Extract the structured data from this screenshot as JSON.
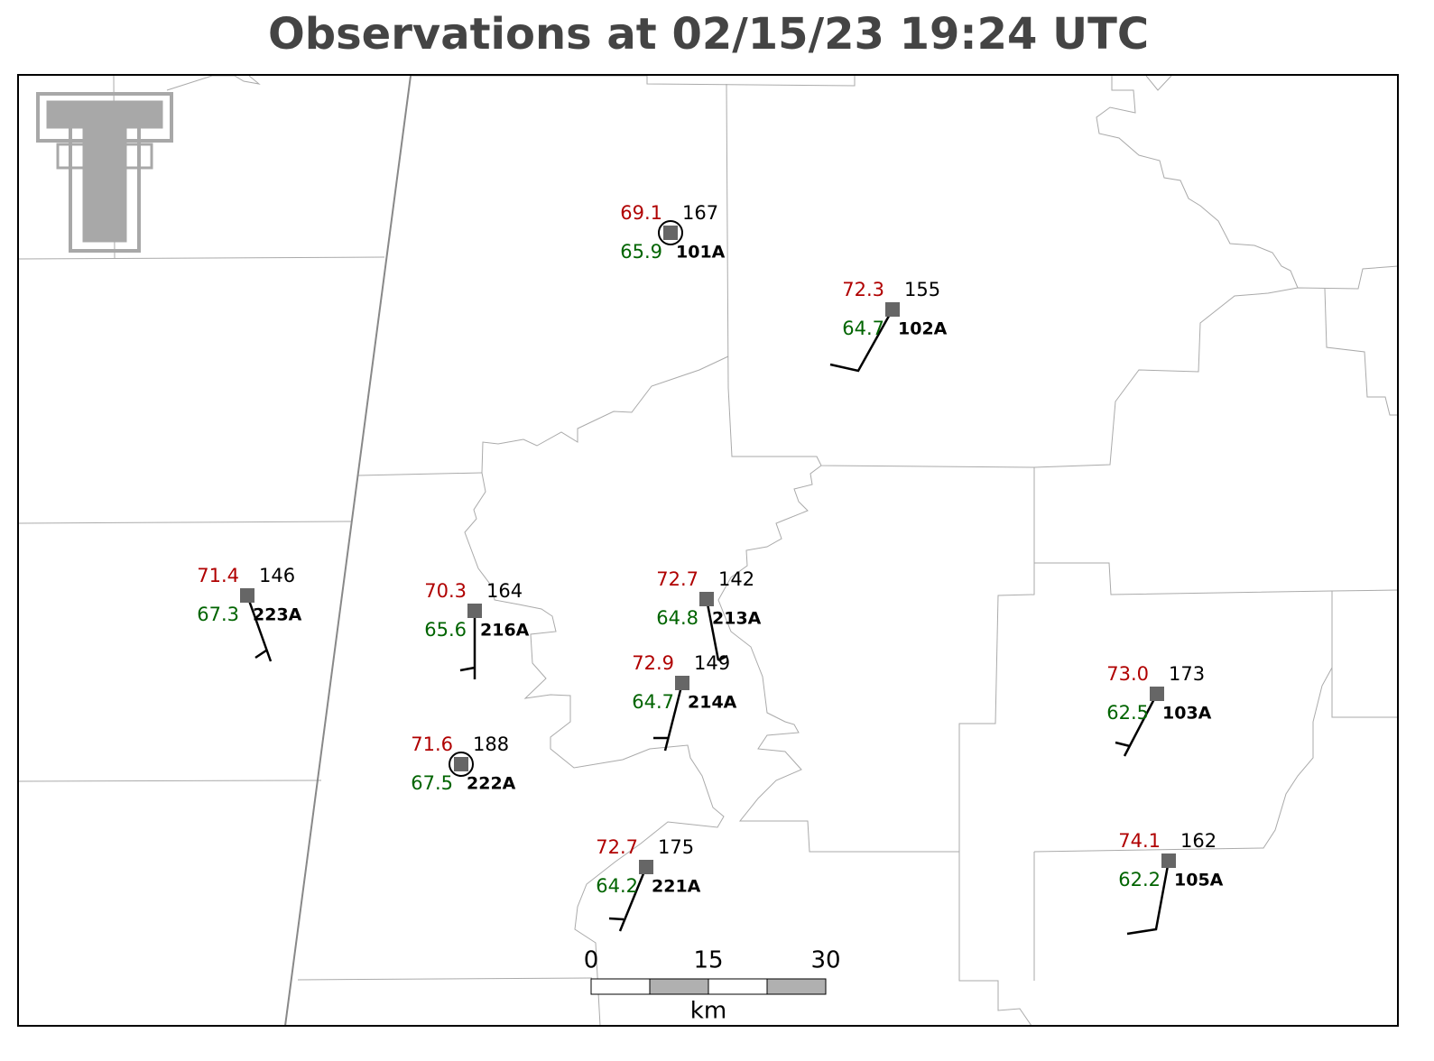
{
  "title": "Observations at 02/15/23 19:24 UTC",
  "stations": [
    {
      "id": "101A",
      "temperature": "69.1",
      "dewpoint": "65.9",
      "pressure": "167"
    },
    {
      "id": "102A",
      "temperature": "72.3",
      "dewpoint": "64.7",
      "pressure": "155"
    },
    {
      "id": "223A",
      "temperature": "71.4",
      "dewpoint": "67.3",
      "pressure": "146"
    },
    {
      "id": "216A",
      "temperature": "70.3",
      "dewpoint": "65.6",
      "pressure": "164"
    },
    {
      "id": "213A",
      "temperature": "72.7",
      "dewpoint": "64.8",
      "pressure": "142"
    },
    {
      "id": "214A",
      "temperature": "72.9",
      "dewpoint": "64.7",
      "pressure": "149"
    },
    {
      "id": "222A",
      "temperature": "71.6",
      "dewpoint": "67.5",
      "pressure": "188"
    },
    {
      "id": "221A",
      "temperature": "72.7",
      "dewpoint": "64.2",
      "pressure": "175"
    },
    {
      "id": "103A",
      "temperature": "73.0",
      "dewpoint": "62.5",
      "pressure": "173"
    },
    {
      "id": "105A",
      "temperature": "74.1",
      "dewpoint": "62.2",
      "pressure": "162"
    }
  ],
  "scale_bar": {
    "ticks": [
      "0",
      "15",
      "30"
    ],
    "unit": "km"
  }
}
